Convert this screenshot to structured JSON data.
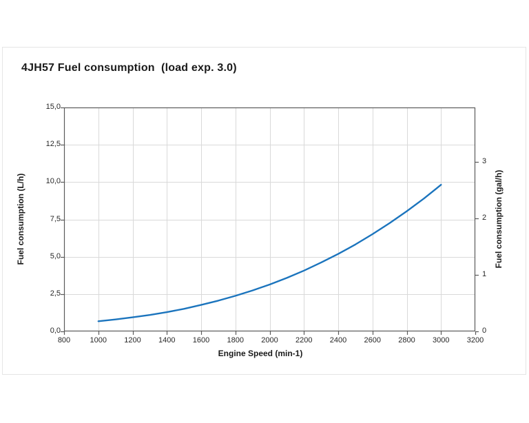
{
  "page": {
    "background_color": "#ffffff",
    "card_border_color": "#e5e5e5"
  },
  "chart_data": {
    "type": "line",
    "title": "4JH57 Fuel consumption  (load exp. 3.0)",
    "xlabel": "Engine Speed (min-1)",
    "ylabel_left": "Fuel consumption (L/h)",
    "ylabel_right": "Fuel consumption (gal/h)",
    "xlim": [
      800,
      3200
    ],
    "ylim_left": [
      0,
      15
    ],
    "liters_per_gallon": 3.78541,
    "grid": true,
    "legend": "none",
    "x_ticks": [
      {
        "v": 800,
        "label": "800"
      },
      {
        "v": 1000,
        "label": "1000"
      },
      {
        "v": 1200,
        "label": "1200"
      },
      {
        "v": 1400,
        "label": "1400"
      },
      {
        "v": 1600,
        "label": "1600"
      },
      {
        "v": 1800,
        "label": "1800"
      },
      {
        "v": 2000,
        "label": "2000"
      },
      {
        "v": 2200,
        "label": "2200"
      },
      {
        "v": 2400,
        "label": "2400"
      },
      {
        "v": 2600,
        "label": "2600"
      },
      {
        "v": 2800,
        "label": "2800"
      },
      {
        "v": 3000,
        "label": "3000"
      },
      {
        "v": 3200,
        "label": "3200"
      }
    ],
    "y_left_ticks": [
      {
        "v": 0,
        "label": "0,0"
      },
      {
        "v": 2.5,
        "label": "2,5"
      },
      {
        "v": 5,
        "label": "5,0"
      },
      {
        "v": 7.5,
        "label": "7,5"
      },
      {
        "v": 10,
        "label": "10,0"
      },
      {
        "v": 12.5,
        "label": "12,5"
      },
      {
        "v": 15,
        "label": "15,0"
      }
    ],
    "y_right_ticks_gal": [
      {
        "v": 0,
        "label": "0"
      },
      {
        "v": 1,
        "label": "1"
      },
      {
        "v": 2,
        "label": "2"
      },
      {
        "v": 3,
        "label": "3"
      }
    ],
    "series": [
      {
        "name": "Fuel consumption",
        "color": "#1b74bd",
        "x": [
          1000,
          1100,
          1200,
          1300,
          1400,
          1500,
          1600,
          1700,
          1800,
          1900,
          2000,
          2100,
          2200,
          2300,
          2400,
          2500,
          2600,
          2700,
          2800,
          2900,
          3000
        ],
        "y_l_per_h": [
          0.68,
          0.8,
          0.94,
          1.1,
          1.29,
          1.51,
          1.77,
          2.06,
          2.38,
          2.74,
          3.14,
          3.58,
          4.07,
          4.61,
          5.19,
          5.82,
          6.51,
          7.25,
          8.05,
          8.9,
          9.82
        ]
      }
    ],
    "colors": {
      "line": "#1b74bd",
      "grid": "#d9d9d9",
      "spine": "#595959",
      "text": "#1a1a1a"
    }
  }
}
